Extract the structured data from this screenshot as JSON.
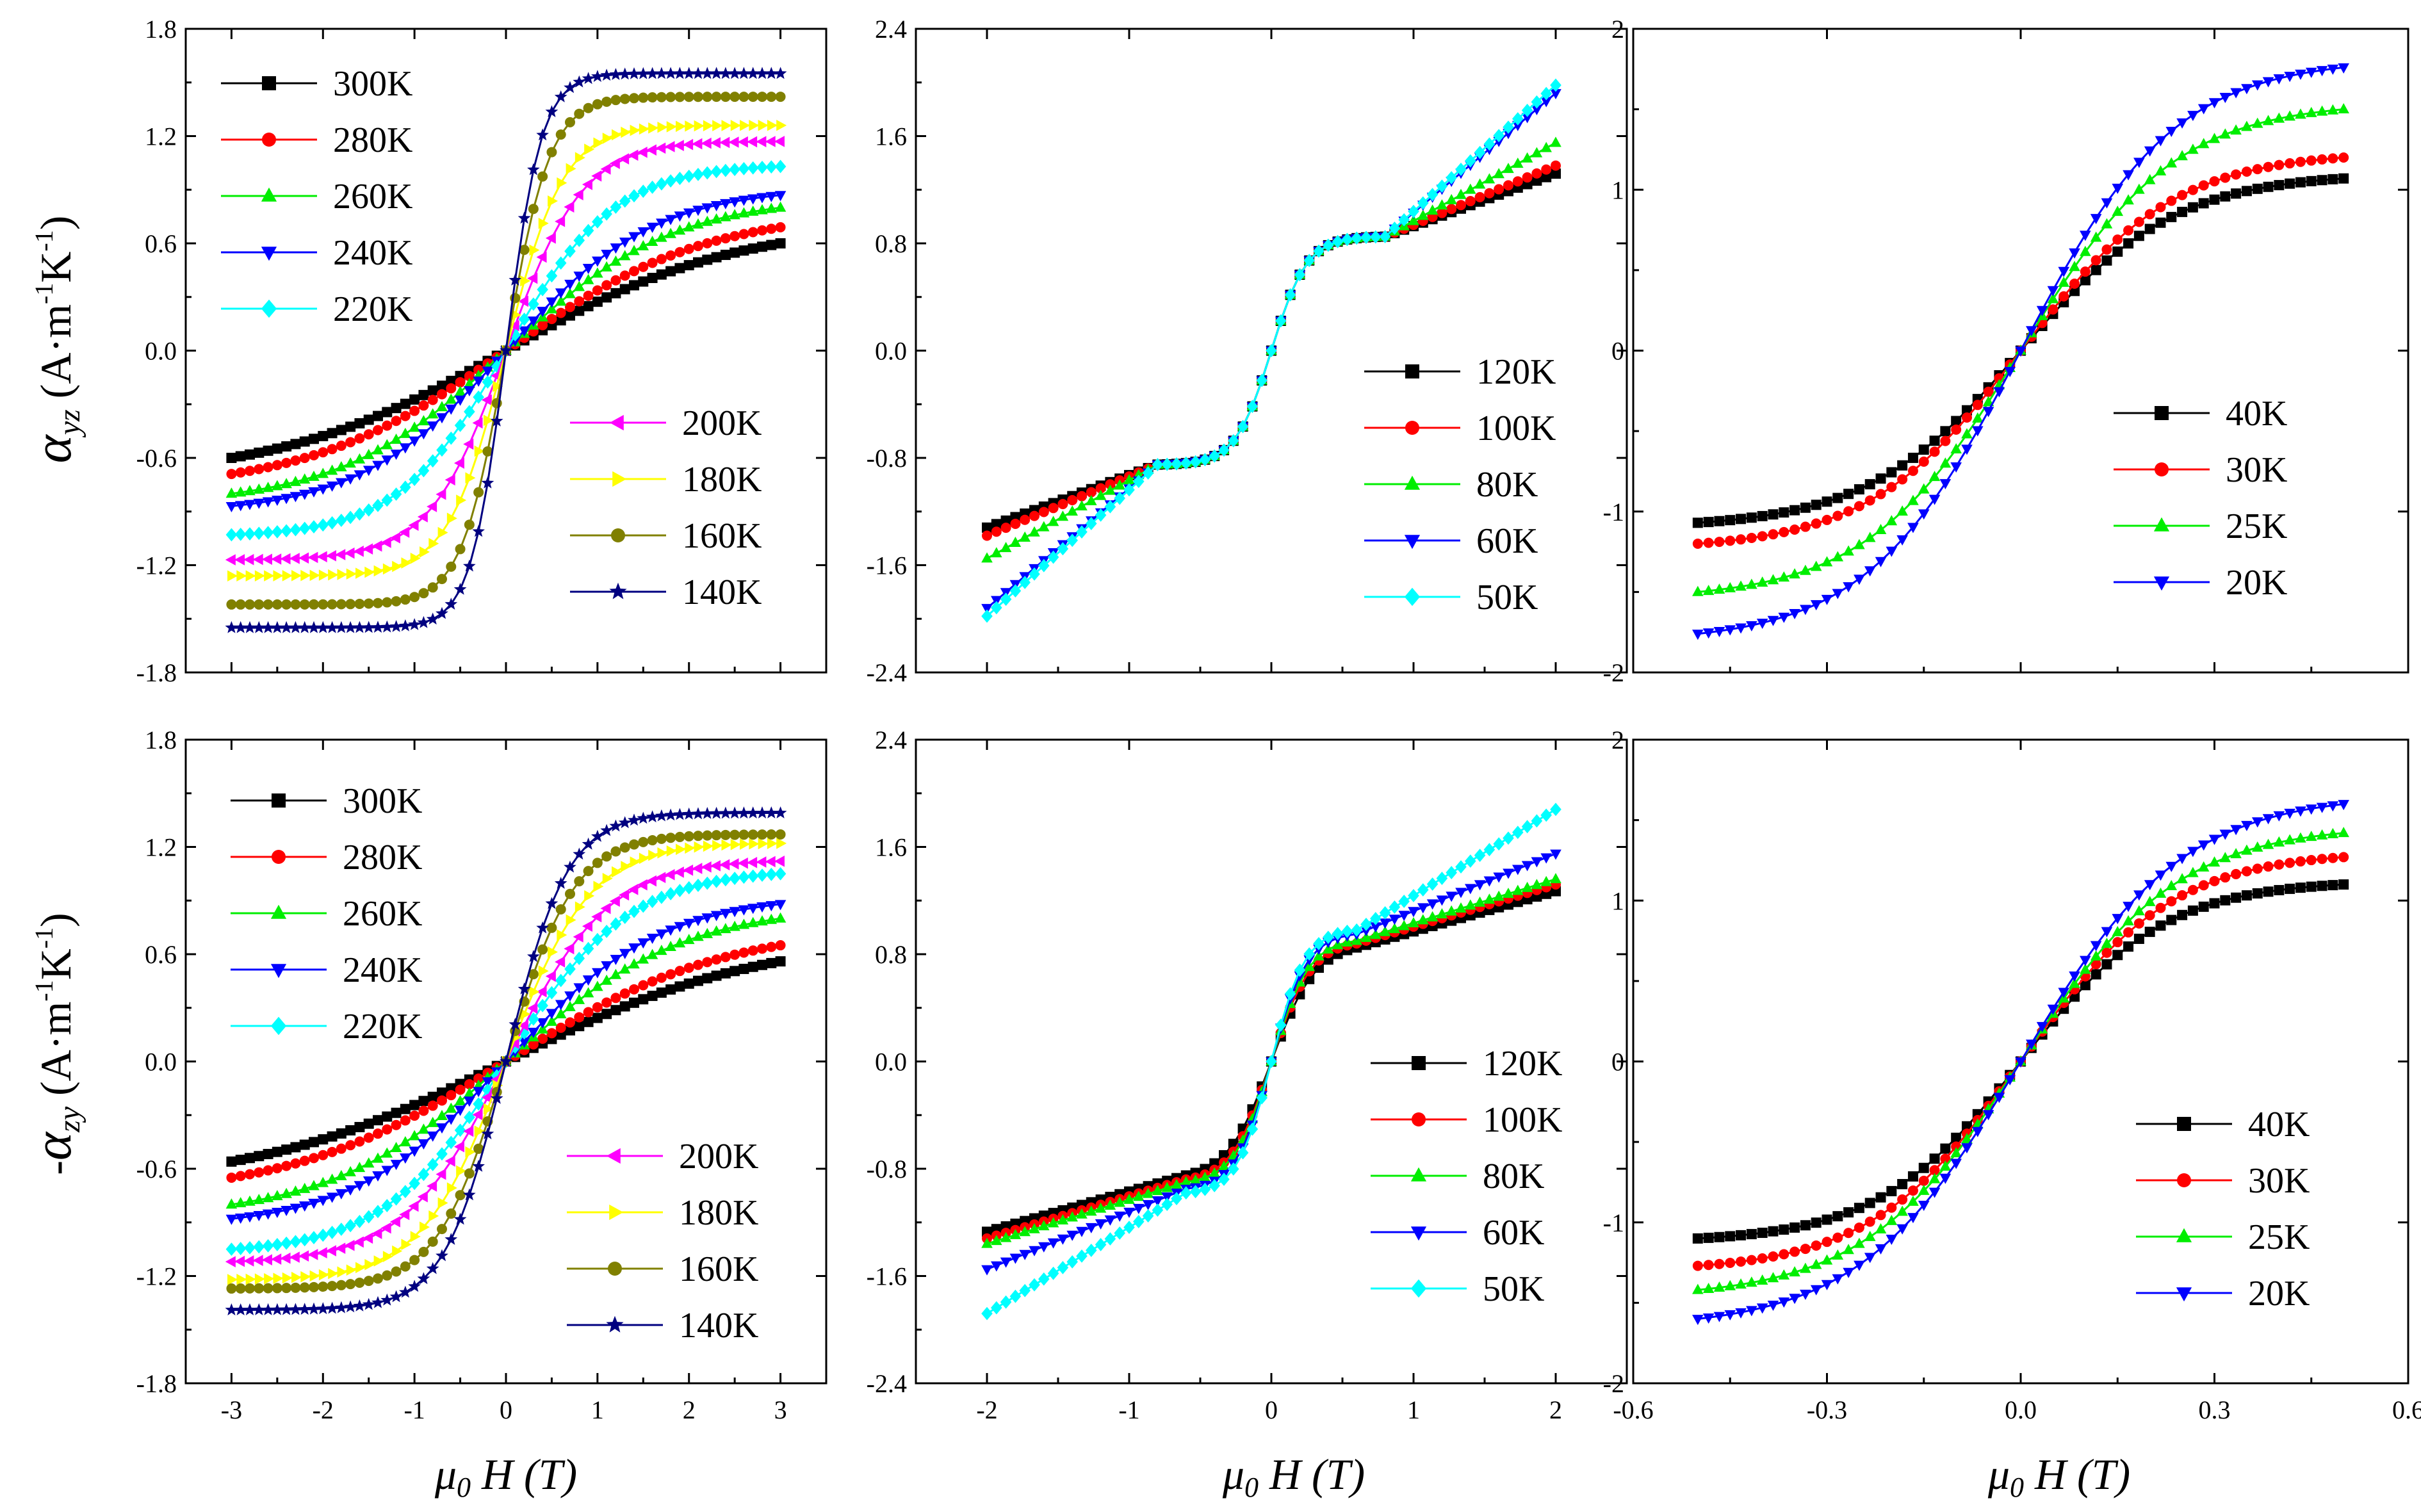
{
  "colors": {
    "black": "#000000",
    "red": "#ff0000",
    "green": "#00ee00",
    "blue": "#0000ff",
    "cyan": "#00ffff",
    "magenta": "#ff00ff",
    "yellow": "#ffff00",
    "olive": "#808000",
    "navy": "#000080"
  },
  "shared_xlabel": {
    "main": "μ",
    "sub": "0",
    "rest": " H (T)"
  },
  "row_ylabels": [
    {
      "prefix": "",
      "symbol": "α",
      "sub": "yz",
      "unit": " (A·m",
      "exp1": "-1",
      "unit2": "K",
      "exp2": "-1",
      "close": ")"
    },
    {
      "prefix": "-",
      "symbol": "α",
      "sub": "zy",
      "unit": " (A·m",
      "exp1": "-1",
      "unit2": "K",
      "exp2": "-1",
      "close": ")"
    }
  ],
  "chart_data": [
    {
      "type": "line",
      "panel": "top-left",
      "xlim": [
        -3.5,
        3.5
      ],
      "ylim": [
        -1.8,
        1.8
      ],
      "xticks": [
        -3,
        -2,
        -1,
        0,
        1,
        2,
        3
      ],
      "xtick_labels": [],
      "yticks": [
        -1.8,
        -1.2,
        -0.6,
        0.0,
        0.6,
        1.2,
        1.8
      ],
      "ytick_labels": [
        "-1.8",
        "-1.2",
        "-0.6",
        "0.0",
        "0.6",
        "1.2",
        "1.8"
      ],
      "x_range": [
        -3,
        3
      ],
      "legends": [
        {
          "placement": "top-left",
          "entries": [
            "300K",
            "280K",
            "260K",
            "240K",
            "220K"
          ]
        },
        {
          "placement": "bottom-right",
          "entries": [
            "200K",
            "180K",
            "160K",
            "140K"
          ]
        }
      ],
      "series": [
        {
          "name": "300K",
          "color": "#000000",
          "marker": "square",
          "saturation": 0.6,
          "slope": 0.4
        },
        {
          "name": "280K",
          "color": "#ff0000",
          "marker": "circle",
          "saturation": 0.69,
          "slope": 0.46
        },
        {
          "name": "260K",
          "color": "#00ee00",
          "marker": "triangle-up",
          "saturation": 0.8,
          "slope": 0.55
        },
        {
          "name": "240K",
          "color": "#0000ff",
          "marker": "triangle-down",
          "saturation": 0.87,
          "slope": 0.62
        },
        {
          "name": "220K",
          "color": "#00ffff",
          "marker": "diamond",
          "saturation": 1.03,
          "slope": 0.85
        },
        {
          "name": "200K",
          "color": "#ff00ff",
          "marker": "triangle-left",
          "saturation": 1.17,
          "slope": 1.2
        },
        {
          "name": "180K",
          "color": "#ffff00",
          "marker": "triangle-right",
          "saturation": 1.26,
          "slope": 1.6
        },
        {
          "name": "160K",
          "color": "#808000",
          "marker": "circle",
          "saturation": 1.42,
          "slope": 2.1
        },
        {
          "name": "140K",
          "color": "#000080",
          "marker": "star",
          "saturation": 1.55,
          "slope": 2.6
        }
      ]
    },
    {
      "type": "line",
      "panel": "top-middle",
      "xlim": [
        -2.5,
        2.5
      ],
      "ylim": [
        -2.4,
        2.4
      ],
      "xticks": [
        -2,
        -1,
        0,
        1,
        2
      ],
      "xtick_labels": [],
      "yticks": [
        -2.4,
        -1.6,
        -0.8,
        0.0,
        0.8,
        1.6,
        2.4
      ],
      "ytick_labels": [
        "-2.4",
        "-1.6",
        "-0.8",
        "0.0",
        "0.8",
        "1.6",
        "2.4"
      ],
      "x_range": [
        -2,
        2
      ],
      "legends": [
        {
          "placement": "right",
          "entries": [
            "120K",
            "100K",
            "80K",
            "60K",
            "50K"
          ]
        }
      ],
      "series": [
        {
          "name": "120K",
          "color": "#000000",
          "marker": "square",
          "saturation": 1.32,
          "slope": 4.0,
          "knee": 0.8,
          "knee_value": 0.85
        },
        {
          "name": "100K",
          "color": "#ff0000",
          "marker": "circle",
          "saturation": 1.38,
          "slope": 4.0,
          "knee": 0.8,
          "knee_value": 0.85
        },
        {
          "name": "80K",
          "color": "#00ee00",
          "marker": "triangle-up",
          "saturation": 1.55,
          "slope": 4.0,
          "knee": 0.8,
          "knee_value": 0.85
        },
        {
          "name": "60K",
          "color": "#0000ff",
          "marker": "triangle-down",
          "saturation": 1.92,
          "slope": 4.0,
          "knee": 0.8,
          "knee_value": 0.85
        },
        {
          "name": "50K",
          "color": "#00ffff",
          "marker": "diamond",
          "saturation": 1.98,
          "slope": 4.0,
          "knee": 0.8,
          "knee_value": 0.85
        }
      ]
    },
    {
      "type": "line",
      "panel": "top-right",
      "xlim": [
        -0.6,
        0.6
      ],
      "ylim": [
        -2,
        2
      ],
      "xticks": [
        -0.6,
        -0.3,
        0.0,
        0.3,
        0.6
      ],
      "xtick_labels": [],
      "yticks": [
        -2,
        -1,
        0,
        1,
        2
      ],
      "ytick_labels": [
        "-2",
        "-1",
        "0",
        "1",
        "2"
      ],
      "x_range": [
        -0.5,
        0.5
      ],
      "legends": [
        {
          "placement": "right",
          "entries": [
            "40K",
            "30K",
            "25K",
            "20K"
          ]
        }
      ],
      "series": [
        {
          "name": "40K",
          "color": "#000000",
          "marker": "square",
          "saturation": 1.07,
          "slope": 4.2
        },
        {
          "name": "30K",
          "color": "#ff0000",
          "marker": "circle",
          "saturation": 1.2,
          "slope": 4.2
        },
        {
          "name": "25K",
          "color": "#00ee00",
          "marker": "triangle-up",
          "saturation": 1.5,
          "slope": 4.2
        },
        {
          "name": "20K",
          "color": "#0000ff",
          "marker": "triangle-down",
          "saturation": 1.76,
          "slope": 4.2
        }
      ]
    },
    {
      "type": "line",
      "panel": "bottom-left",
      "xlim": [
        -3.5,
        3.5
      ],
      "ylim": [
        -1.8,
        1.8
      ],
      "xticks": [
        -3,
        -2,
        -1,
        0,
        1,
        2,
        3
      ],
      "xtick_labels": [
        "-3",
        "-2",
        "-1",
        "0",
        "1",
        "2",
        "3"
      ],
      "yticks": [
        -1.8,
        -1.2,
        -0.6,
        0.0,
        0.6,
        1.2,
        1.8
      ],
      "ytick_labels": [
        "-1.8",
        "-1.2",
        "-0.6",
        "0.0",
        "0.6",
        "1.2",
        "1.8"
      ],
      "x_range": [
        -3,
        3
      ],
      "legends": [
        {
          "placement": "top-left",
          "entries": [
            "300K",
            "280K",
            "260K",
            "240K",
            "220K"
          ]
        },
        {
          "placement": "bottom-right",
          "entries": [
            "200K",
            "180K",
            "160K",
            "140K"
          ]
        }
      ],
      "series": [
        {
          "name": "300K",
          "color": "#000000",
          "marker": "square",
          "saturation": 0.56,
          "slope": 0.36
        },
        {
          "name": "280K",
          "color": "#ff0000",
          "marker": "circle",
          "saturation": 0.65,
          "slope": 0.42
        },
        {
          "name": "260K",
          "color": "#00ee00",
          "marker": "triangle-up",
          "saturation": 0.8,
          "slope": 0.52
        },
        {
          "name": "240K",
          "color": "#0000ff",
          "marker": "triangle-down",
          "saturation": 0.88,
          "slope": 0.6
        },
        {
          "name": "220K",
          "color": "#00ffff",
          "marker": "diamond",
          "saturation": 1.05,
          "slope": 0.75
        },
        {
          "name": "200K",
          "color": "#ff00ff",
          "marker": "triangle-left",
          "saturation": 1.12,
          "slope": 0.9
        },
        {
          "name": "180K",
          "color": "#ffff00",
          "marker": "triangle-right",
          "saturation": 1.22,
          "slope": 1.1
        },
        {
          "name": "160K",
          "color": "#808000",
          "marker": "circle",
          "saturation": 1.27,
          "slope": 1.35
        },
        {
          "name": "140K",
          "color": "#000080",
          "marker": "star",
          "saturation": 1.39,
          "slope": 1.5
        }
      ]
    },
    {
      "type": "line",
      "panel": "bottom-middle",
      "xlim": [
        -2.5,
        2.5
      ],
      "ylim": [
        -2.4,
        2.4
      ],
      "xticks": [
        -2,
        -1,
        0,
        1,
        2
      ],
      "xtick_labels": [
        "-2",
        "-1",
        "0",
        "1",
        "2"
      ],
      "yticks": [
        -2.4,
        -1.6,
        -0.8,
        0.0,
        0.8,
        1.6,
        2.4
      ],
      "ytick_labels": [
        "-2.4",
        "-1.6",
        "-0.8",
        "0.0",
        "0.8",
        "1.6",
        "2.4"
      ],
      "x_range": [
        -2,
        2
      ],
      "legends": [
        {
          "placement": "right",
          "entries": [
            "120K",
            "100K",
            "80K",
            "60K",
            "50K"
          ]
        }
      ],
      "series": [
        {
          "name": "120K",
          "color": "#000000",
          "marker": "square",
          "saturation": 1.27,
          "slope": 3.2,
          "knee": 0.6,
          "knee_value": 0.85
        },
        {
          "name": "100K",
          "color": "#ff0000",
          "marker": "circle",
          "saturation": 1.32,
          "slope": 3.6,
          "knee": 0.6,
          "knee_value": 0.88
        },
        {
          "name": "80K",
          "color": "#00ee00",
          "marker": "triangle-up",
          "saturation": 1.36,
          "slope": 3.8,
          "knee": 0.6,
          "knee_value": 0.9
        },
        {
          "name": "60K",
          "color": "#0000ff",
          "marker": "triangle-down",
          "saturation": 1.55,
          "slope": 4.0,
          "knee": 0.6,
          "knee_value": 0.95
        },
        {
          "name": "50K",
          "color": "#00ffff",
          "marker": "diamond",
          "saturation": 1.88,
          "slope": 4.2,
          "knee": 0.6,
          "knee_value": 0.98
        }
      ]
    },
    {
      "type": "line",
      "panel": "bottom-right",
      "xlim": [
        -0.6,
        0.6
      ],
      "ylim": [
        -2,
        2
      ],
      "xticks": [
        -0.6,
        -0.3,
        0.0,
        0.3,
        0.6
      ],
      "xtick_labels": [
        "-0.6",
        "-0.3",
        "0.0",
        "0.3",
        "0.6"
      ],
      "yticks": [
        -2,
        -1,
        0,
        1,
        2
      ],
      "ytick_labels": [
        "-2",
        "-1",
        "0",
        "1",
        "2"
      ],
      "x_range": [
        -0.5,
        0.5
      ],
      "legends": [
        {
          "placement": "bottom-right",
          "entries": [
            "40K",
            "30K",
            "25K",
            "20K"
          ]
        }
      ],
      "series": [
        {
          "name": "40K",
          "color": "#000000",
          "marker": "square",
          "saturation": 1.1,
          "slope": 4.5
        },
        {
          "name": "30K",
          "color": "#ff0000",
          "marker": "circle",
          "saturation": 1.27,
          "slope": 4.3
        },
        {
          "name": "25K",
          "color": "#00ee00",
          "marker": "triangle-up",
          "saturation": 1.42,
          "slope": 4.1
        },
        {
          "name": "20K",
          "color": "#0000ff",
          "marker": "triangle-down",
          "saturation": 1.6,
          "slope": 4.0
        }
      ]
    }
  ]
}
